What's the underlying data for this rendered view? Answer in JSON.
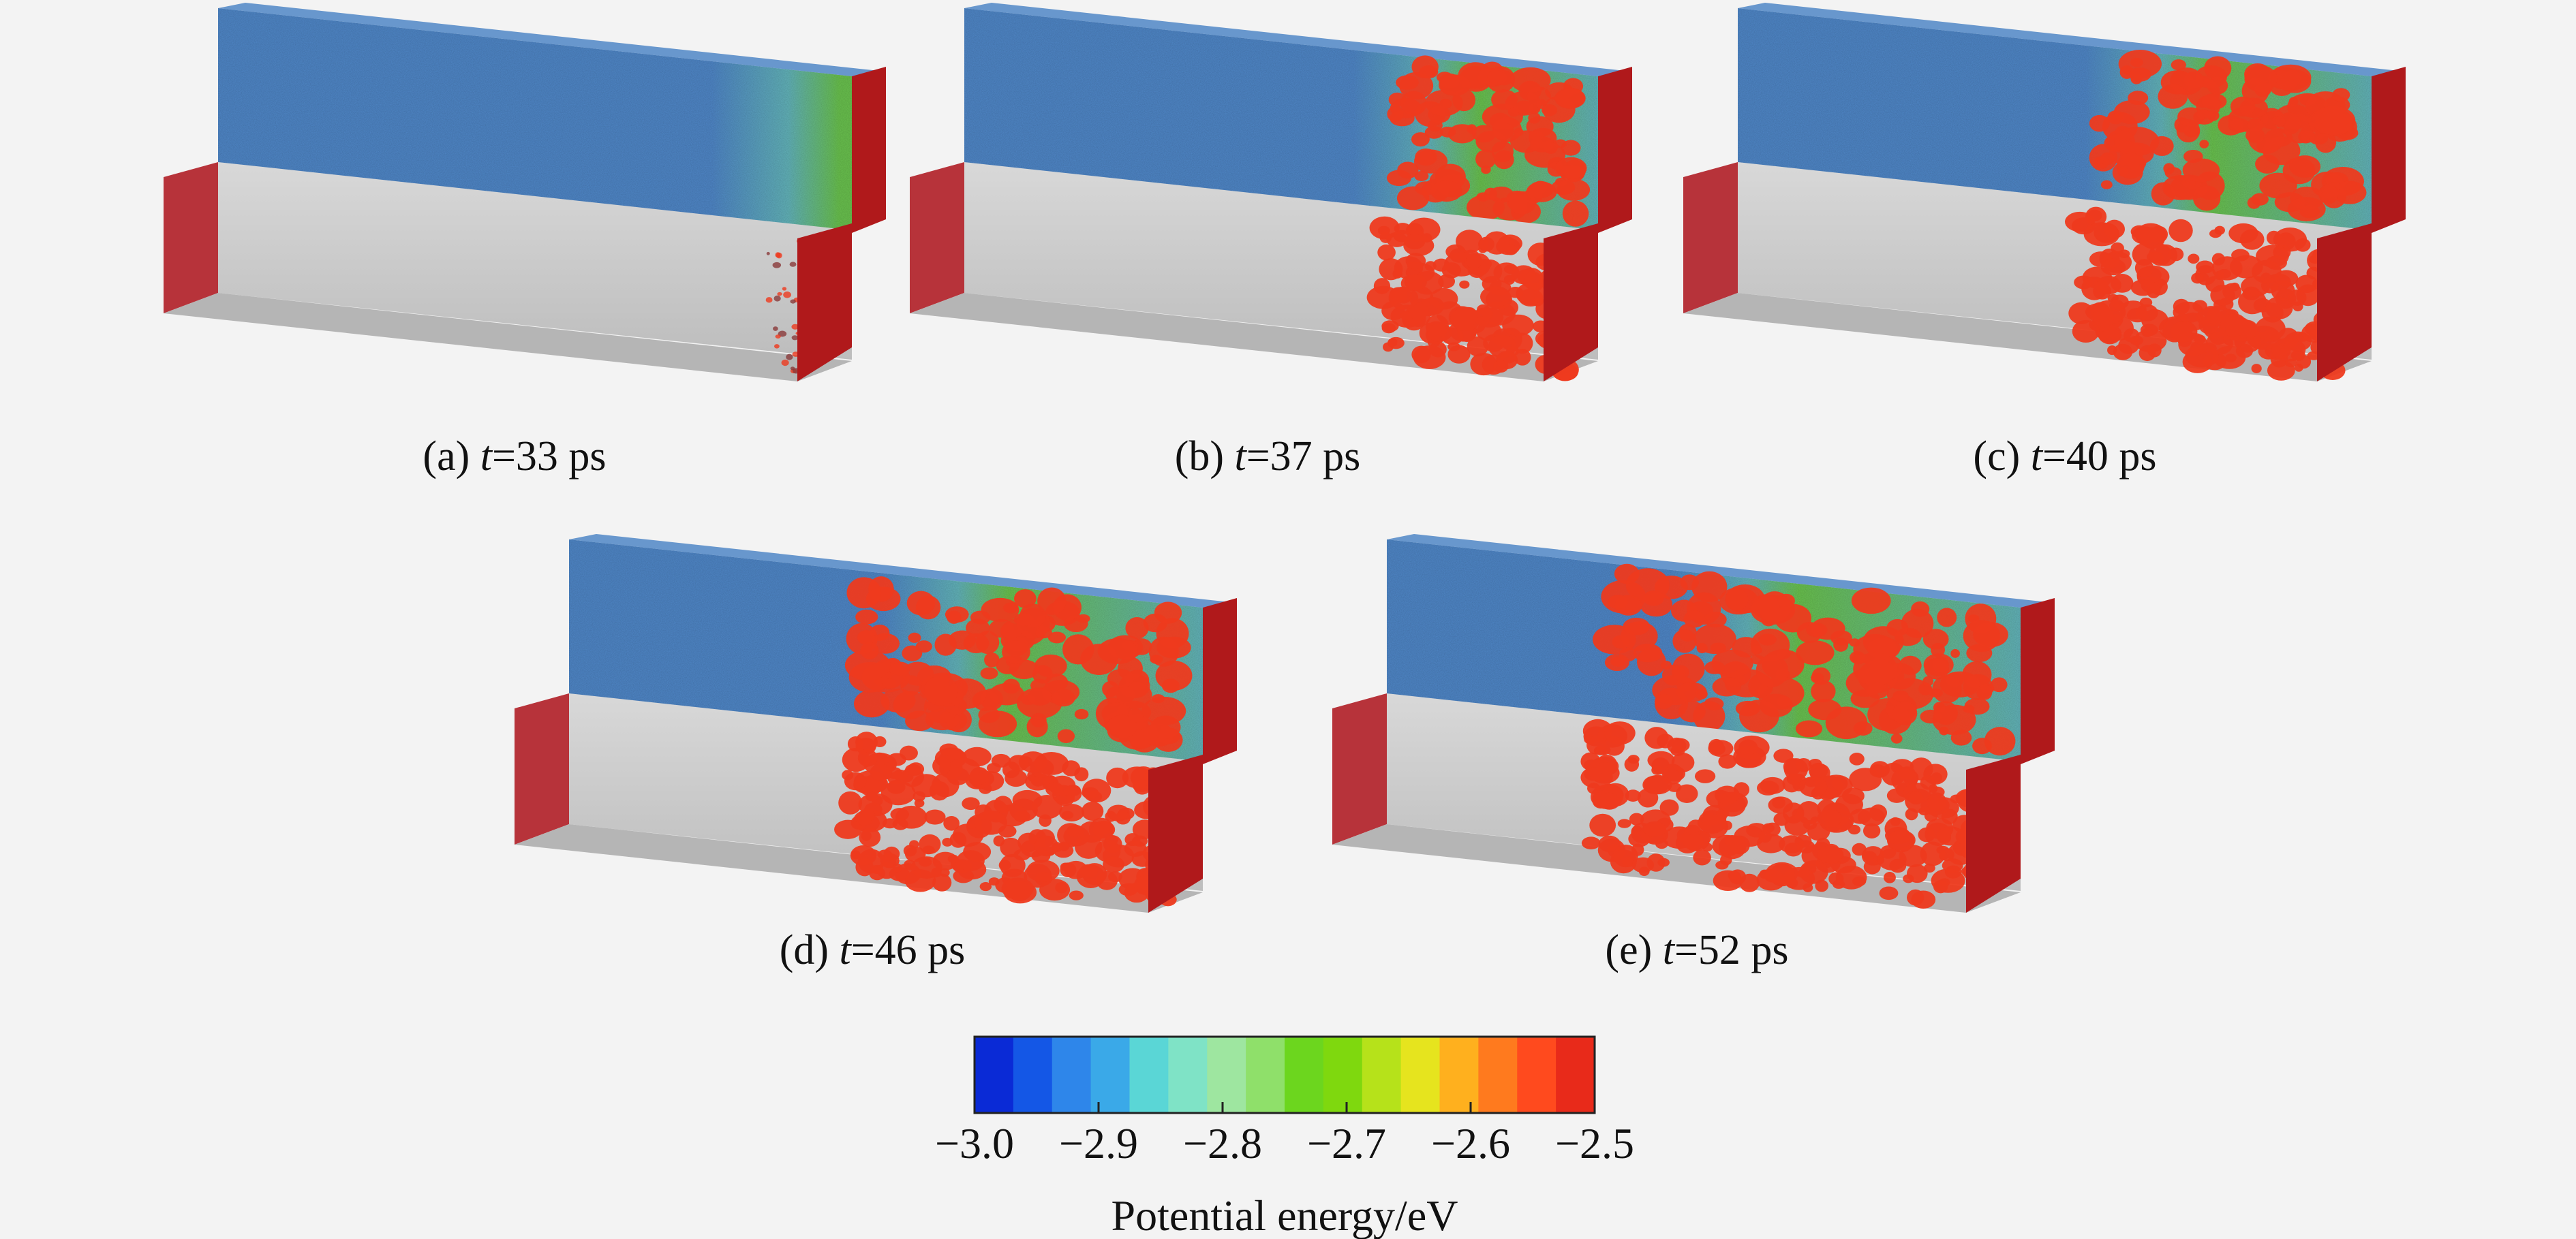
{
  "panels": [
    {
      "letter": "(a)",
      "var": "t",
      "eq": "=33 ps",
      "time_ps": 33,
      "front_extent": 0.0,
      "scatter_extent": 0.12
    },
    {
      "letter": "(b)",
      "var": "t",
      "eq": "=37 ps",
      "time_ps": 37,
      "front_extent": 0.3,
      "scatter_extent": 0.32
    },
    {
      "letter": "(c)",
      "var": "t",
      "eq": "=40 ps",
      "time_ps": 40,
      "front_extent": 0.42,
      "scatter_extent": 0.44
    },
    {
      "letter": "(d)",
      "var": "t",
      "eq": "=46 ps",
      "time_ps": 46,
      "front_extent": 0.52,
      "scatter_extent": 0.54
    },
    {
      "letter": "(e)",
      "var": "t",
      "eq": "=52 ps",
      "time_ps": 52,
      "front_extent": 0.62,
      "scatter_extent": 0.66
    }
  ],
  "colorbar": {
    "title": "Potential energy/eV",
    "min": -3.0,
    "max": -2.5,
    "ticks": [
      "−3.0",
      "−2.9",
      "−2.8",
      "−2.7",
      "−2.6",
      "−2.5"
    ],
    "colors": [
      "#0a2ad6",
      "#1457e6",
      "#2e86ea",
      "#3aa9e8",
      "#5ad6d6",
      "#7fe3c6",
      "#9ee6a0",
      "#8fe06a",
      "#6cd61e",
      "#7fd80e",
      "#b6e21a",
      "#e6e41e",
      "#ffb01e",
      "#ff7a1e",
      "#ff4a1e",
      "#e82a1a"
    ]
  },
  "colors": {
    "upper_blue": "#4f86c6",
    "upper_cyan": "#62b2b8",
    "upper_green": "#69c04e",
    "cluster_red": "#ee3a1e",
    "end_cap": "#b0191b",
    "lower_box": "#c8c8c8",
    "background": "#f3f3f3"
  }
}
